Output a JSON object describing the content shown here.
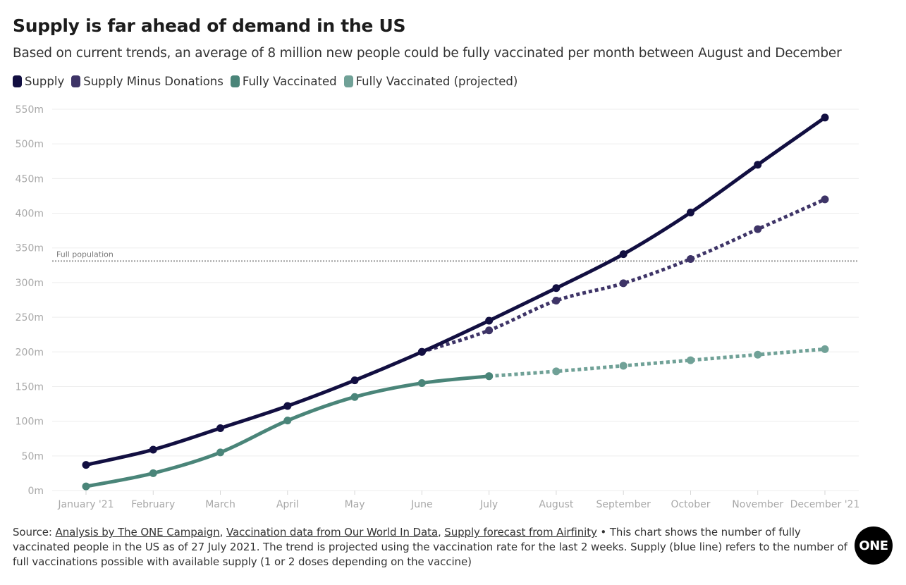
{
  "header": {
    "title": "Supply is far ahead of demand in the US",
    "subtitle": "Based on current trends, an average of 8 million new people could be fully vaccinated per month between August and December"
  },
  "chart_data": {
    "type": "line",
    "categories": [
      "January '21",
      "February",
      "March",
      "April",
      "May",
      "June",
      "July",
      "August",
      "September",
      "October",
      "November",
      "December '21"
    ],
    "ylim": [
      0,
      550
    ],
    "yticks": [
      0,
      50,
      100,
      150,
      200,
      250,
      300,
      350,
      400,
      450,
      500,
      550
    ],
    "ytick_labels": [
      "0m",
      "50m",
      "100m",
      "150m",
      "200m",
      "250m",
      "300m",
      "350m",
      "400m",
      "450m",
      "500m",
      "550m"
    ],
    "series": [
      {
        "name": "Supply",
        "color": "#120f41",
        "style": "solid",
        "values": [
          37,
          59,
          90,
          122,
          159,
          200,
          245,
          292,
          341,
          401,
          470,
          538
        ]
      },
      {
        "name": "Supply Minus Donations",
        "color": "#3e3467",
        "style": "dotted",
        "values": [
          null,
          null,
          null,
          null,
          null,
          200,
          231,
          274,
          299,
          334,
          377,
          420
        ]
      },
      {
        "name": "Fully Vaccinated",
        "color": "#4a8579",
        "style": "solid",
        "values": [
          6,
          25,
          55,
          101,
          135,
          155,
          165,
          null,
          null,
          null,
          null,
          null
        ]
      },
      {
        "name": "Fully Vaccinated (projected)",
        "color": "#70a197",
        "style": "dotted",
        "values": [
          null,
          null,
          null,
          null,
          null,
          null,
          165,
          172,
          180,
          188,
          196,
          204
        ]
      }
    ],
    "reference_line": {
      "value": 331,
      "label": "Full population"
    },
    "grid": true,
    "legend_position": "top-left"
  },
  "source": {
    "prefix": "Source: ",
    "link1": "Analysis by The ONE Campaign",
    "sep1": ", ",
    "link2": "Vaccination data from Our World In Data",
    "sep2": ", ",
    "link3": "Supply forecast from Airfinity",
    "note": " • This chart shows the number of fully vaccinated people in the US as of 27 July 2021. The trend is projected using the vaccination rate for the last 2 weeks. Supply (blue line) refers to the number of full vaccinations possible with available supply (1 or 2 doses depending on the vaccine)"
  },
  "logo": {
    "text": "ONE"
  }
}
